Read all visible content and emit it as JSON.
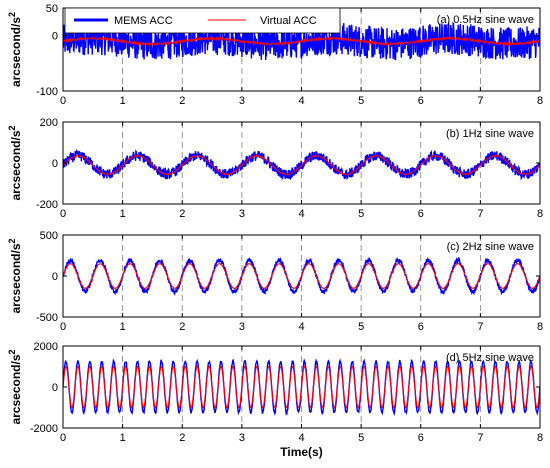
{
  "chart_data": [
    {
      "type": "line",
      "annotation": "(a) 0.5Hz sine wave",
      "ylabel": "arcsecond/s",
      "ylabel_sup": "2",
      "xlim": [
        0,
        8
      ],
      "ylim": [
        -100,
        50
      ],
      "yticks": [
        -100,
        0,
        50
      ],
      "xticks": [
        0,
        1,
        2,
        3,
        4,
        5,
        6,
        7,
        8
      ],
      "grid": "vertical dashed",
      "series": [
        {
          "name": "MEMS ACC",
          "color": "#0000ff",
          "frequency_hz": 0.5,
          "amplitude": 5,
          "noise": 30,
          "offset": -10
        },
        {
          "name": "Virtual ACC",
          "color": "#ff0000",
          "frequency_hz": 0.5,
          "amplitude": 5,
          "noise": 2,
          "offset": -10
        }
      ]
    },
    {
      "type": "line",
      "annotation": "(b) 1Hz sine wave",
      "ylabel": "arcsecond/s",
      "ylabel_sup": "2",
      "xlim": [
        0,
        8
      ],
      "ylim": [
        -200,
        200
      ],
      "yticks": [
        -200,
        0,
        200
      ],
      "xticks": [
        0,
        1,
        2,
        3,
        4,
        5,
        6,
        7,
        8
      ],
      "grid": "vertical dashed",
      "series": [
        {
          "name": "MEMS ACC",
          "color": "#0000ff",
          "frequency_hz": 1,
          "amplitude": 45,
          "noise": 25,
          "offset": -10
        },
        {
          "name": "Virtual ACC",
          "color": "#ff0000",
          "frequency_hz": 1,
          "amplitude": 45,
          "noise": 2,
          "offset": -10
        }
      ]
    },
    {
      "type": "line",
      "annotation": "(c) 2Hz sine wave",
      "ylabel": "arcsecond/s",
      "ylabel_sup": "2",
      "xlim": [
        0,
        8
      ],
      "ylim": [
        -500,
        500
      ],
      "yticks": [
        -500,
        0,
        500
      ],
      "xticks": [
        0,
        1,
        2,
        3,
        4,
        5,
        6,
        7,
        8
      ],
      "grid": "vertical dashed",
      "series": [
        {
          "name": "MEMS ACC",
          "color": "#0000ff",
          "frequency_hz": 2,
          "amplitude": 190,
          "noise": 25,
          "offset": 0
        },
        {
          "name": "Virtual ACC",
          "color": "#ff0000",
          "frequency_hz": 2,
          "amplitude": 150,
          "noise": 2,
          "offset": 0
        }
      ]
    },
    {
      "type": "line",
      "annotation": "(d) 5Hz sine wave",
      "ylabel": "arcsecond/s",
      "ylabel_sup": "2",
      "xlabel": "Time(s)",
      "xlim": [
        0,
        8
      ],
      "ylim": [
        -2000,
        2000
      ],
      "yticks": [
        -2000,
        0,
        2000
      ],
      "xticks": [
        0,
        1,
        2,
        3,
        4,
        5,
        6,
        7,
        8
      ],
      "grid": "vertical dashed",
      "series": [
        {
          "name": "MEMS ACC",
          "color": "#0000ff",
          "frequency_hz": 5,
          "amplitude": 1250,
          "noise": 60,
          "offset": 0
        },
        {
          "name": "Virtual ACC",
          "color": "#ff0000",
          "frequency_hz": 5,
          "amplitude": 1000,
          "noise": 10,
          "offset": 0
        }
      ]
    }
  ],
  "legend": {
    "placement": "top-left of first panel",
    "entries": [
      {
        "label": "MEMS ACC",
        "color": "#0000ff"
      },
      {
        "label": "Virtual ACC",
        "color": "#ff0000"
      }
    ]
  }
}
